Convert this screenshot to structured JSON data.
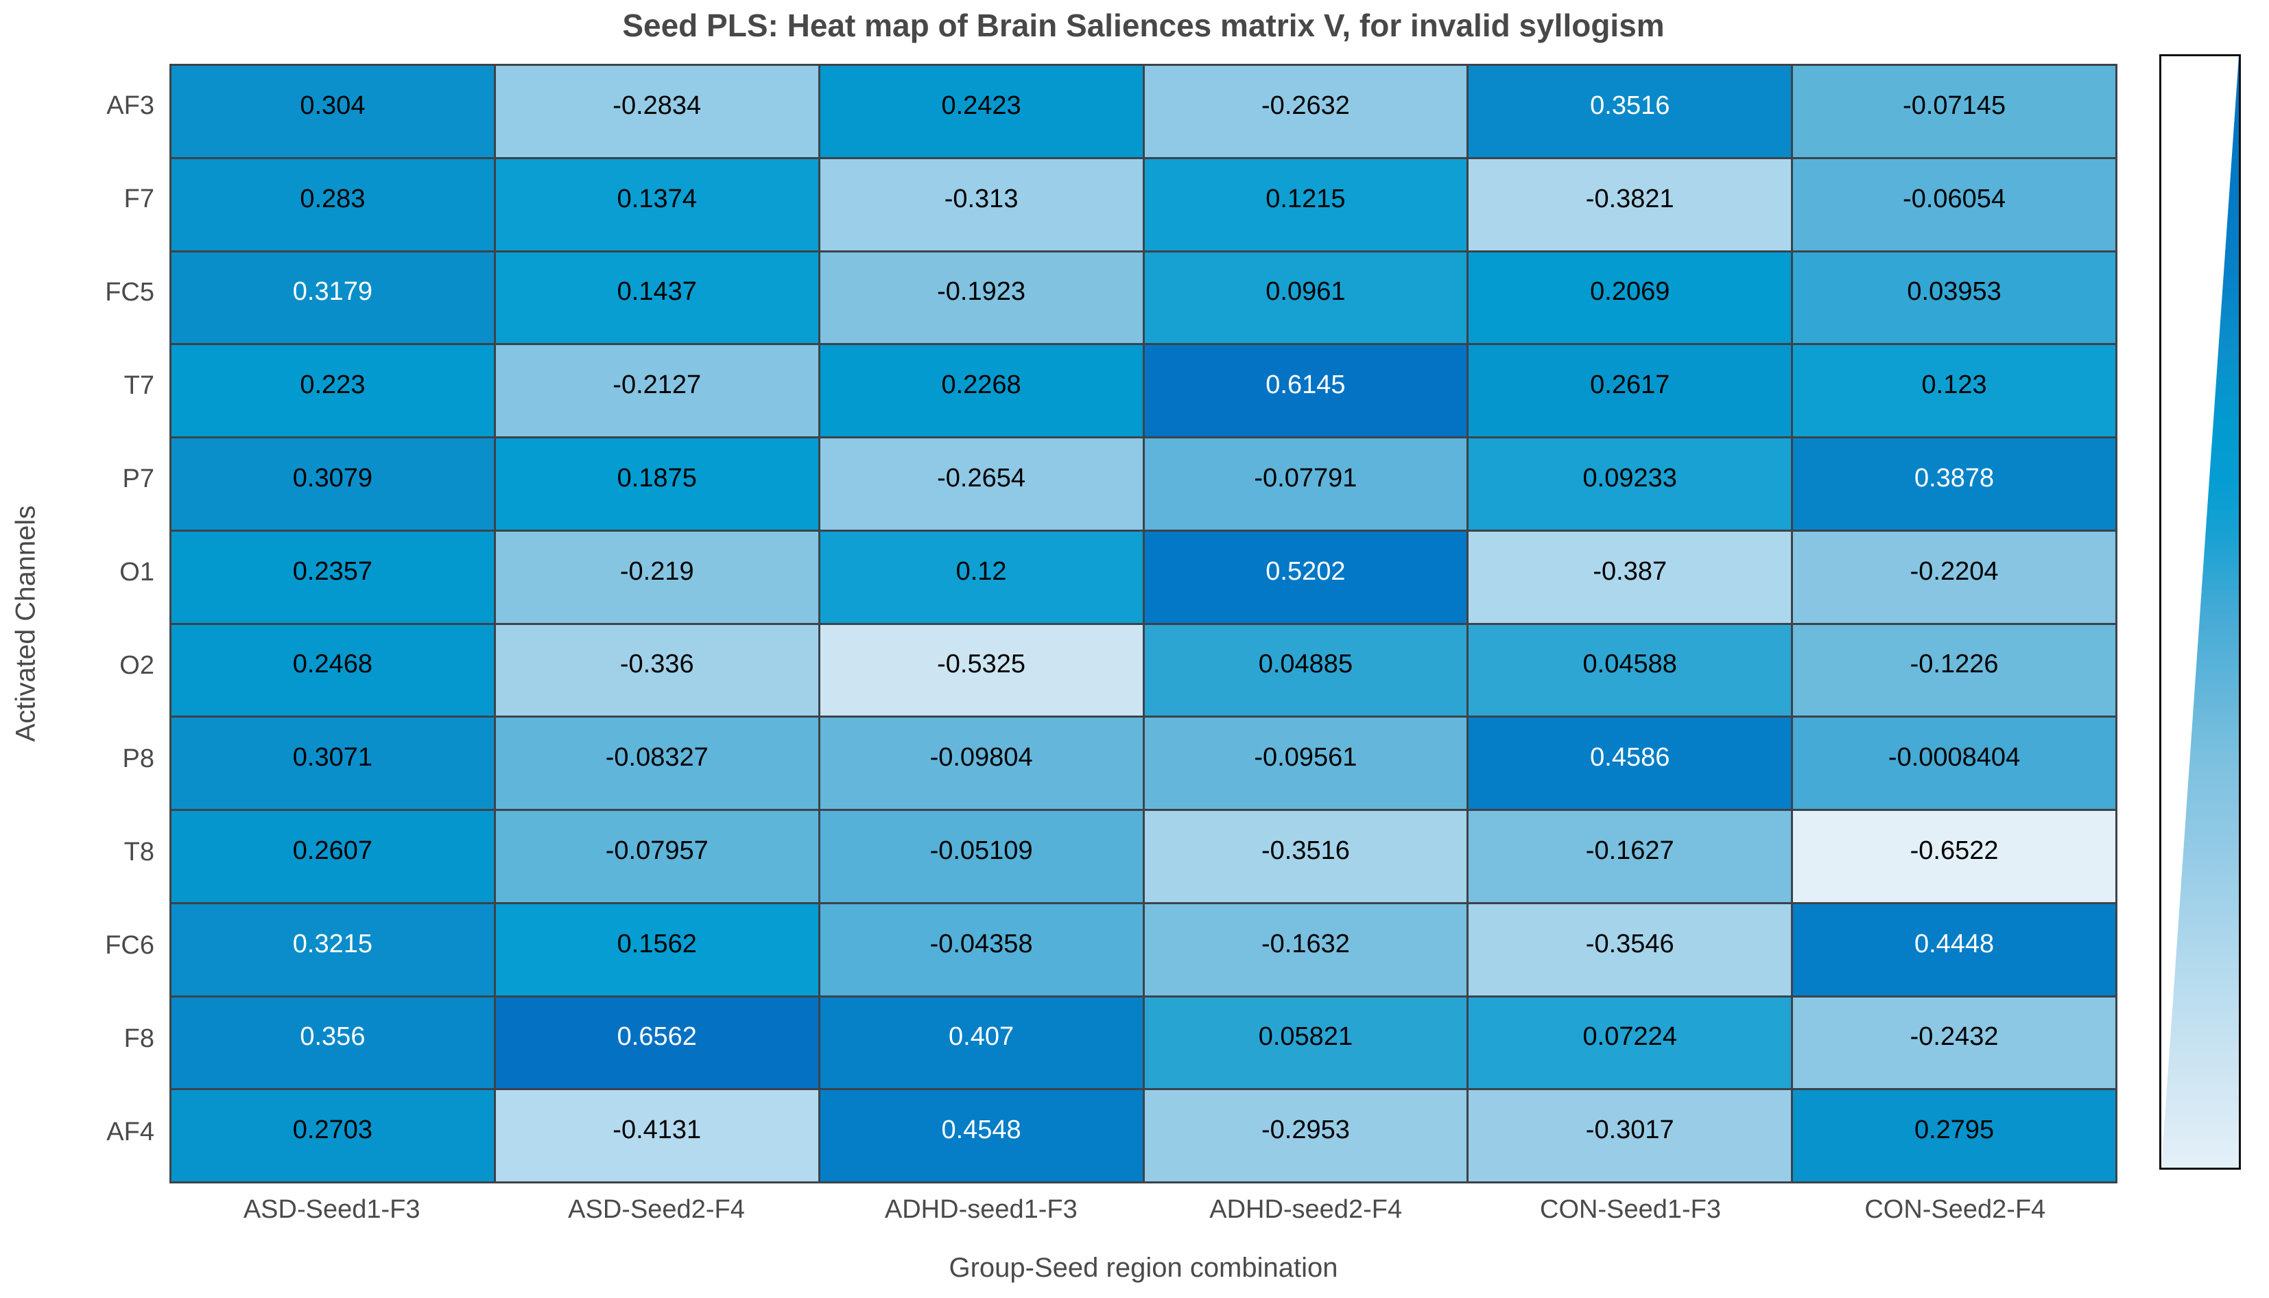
{
  "figure": {
    "background": "#ffffff"
  },
  "chart_data": {
    "type": "heatmap",
    "title": "Seed PLS: Heat map of Brain Saliences matrix V, for invalid syllogism",
    "xlabel": "Group-Seed region combination",
    "ylabel": "Activated Channels",
    "columns": [
      "ASD-Seed1-F3",
      "ASD-Seed2-F4",
      "ADHD-seed1-F3",
      "ADHD-seed2-F4",
      "CON-Seed1-F3",
      "CON-Seed2-F4"
    ],
    "rows": [
      "AF3",
      "F7",
      "FC5",
      "T7",
      "P7",
      "O1",
      "O2",
      "P8",
      "T8",
      "FC6",
      "F8",
      "AF4"
    ],
    "values": [
      [
        "0.304",
        "-0.2834",
        "0.2423",
        "-0.2632",
        "0.3516",
        "-0.07145"
      ],
      [
        "0.283",
        "0.1374",
        "-0.313",
        "0.1215",
        "-0.3821",
        "-0.06054"
      ],
      [
        "0.3179",
        "0.1437",
        "-0.1923",
        "0.0961",
        "0.2069",
        "0.03953"
      ],
      [
        "0.223",
        "-0.2127",
        "0.2268",
        "0.6145",
        "0.2617",
        "0.123"
      ],
      [
        "0.3079",
        "0.1875",
        "-0.2654",
        "-0.07791",
        "0.09233",
        "0.3878"
      ],
      [
        "0.2357",
        "-0.219",
        "0.12",
        "0.5202",
        "-0.387",
        "-0.2204"
      ],
      [
        "0.2468",
        "-0.336",
        "-0.5325",
        "0.04885",
        "0.04588",
        "-0.1226"
      ],
      [
        "0.3071",
        "-0.08327",
        "-0.09804",
        "-0.09561",
        "0.4586",
        "-0.0008404"
      ],
      [
        "0.2607",
        "-0.07957",
        "-0.05109",
        "-0.3516",
        "-0.1627",
        "-0.6522"
      ],
      [
        "0.3215",
        "0.1562",
        "-0.04358",
        "-0.1632",
        "-0.3546",
        "0.4448"
      ],
      [
        "0.356",
        "0.6562",
        "0.407",
        "0.05821",
        "0.07224",
        "-0.2432"
      ],
      [
        "0.2703",
        "-0.4131",
        "0.4548",
        "-0.2953",
        "-0.3017",
        "0.2795"
      ]
    ],
    "value_range": [
      -0.6522,
      0.6562
    ],
    "white_text_threshold": 0.7375,
    "grid_on": true,
    "legend_position": "right",
    "colormap_stops": [
      [
        0.0,
        "#e4f0f8"
      ],
      [
        0.09,
        "#cde5f2"
      ],
      [
        0.18,
        "#b4daee"
      ],
      [
        0.28,
        "#95cbe6"
      ],
      [
        0.37,
        "#7bc0df"
      ],
      [
        0.5,
        "#44aad5"
      ],
      [
        0.57,
        "#17a1d2"
      ],
      [
        0.62,
        "#049dd2"
      ],
      [
        0.68,
        "#0399cf"
      ],
      [
        0.73,
        "#0b90cb"
      ],
      [
        0.81,
        "#0680c7"
      ],
      [
        0.9,
        "#0378c6"
      ],
      [
        1.0,
        "#0571c3"
      ]
    ],
    "colors": {
      "cell_text_dark": "#000000",
      "cell_text_light": "#ffffff",
      "grid_lines": "#3c434a",
      "axis_text": "#4a4a4a",
      "title_text": "#484848",
      "colorbar_border": "#111111"
    }
  }
}
